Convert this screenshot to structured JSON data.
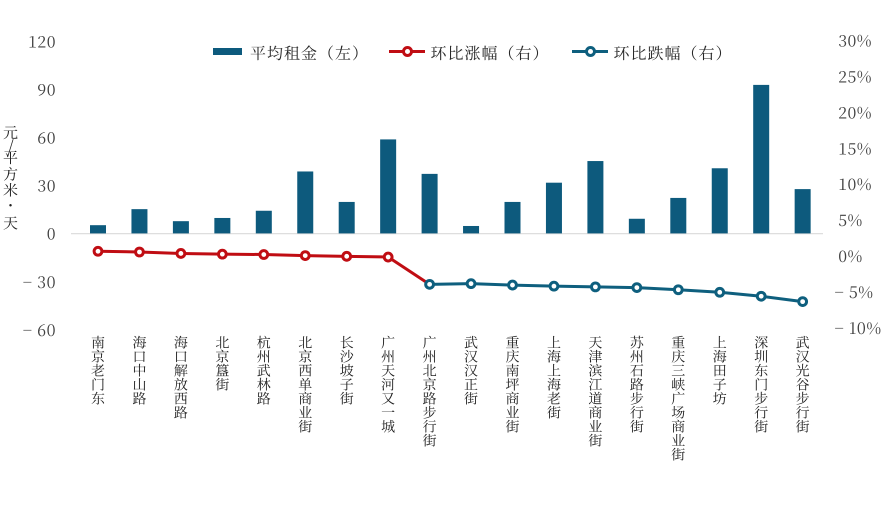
{
  "chart_data": {
    "type": "combo_bar_line",
    "categories": [
      "南京老门东",
      "海口中山路",
      "海口解放西路",
      "北京簋街",
      "杭州武林路",
      "北京西单商业街",
      "长沙坡子街",
      "广州天河又一城",
      "广州北京路步行街",
      "武汉汉正街",
      "重庆南坪商业街",
      "上海上海老街",
      "天津滨江道商业街",
      "苏州石路步行街",
      "重庆三峡广场商业街",
      "上海田子坊",
      "深圳东门步行街",
      "武汉光谷步行街"
    ],
    "series": [
      {
        "name": "平均租金（左）",
        "type": "bar",
        "axis": "left",
        "values": [
          5,
          15,
          7.5,
          9.5,
          14,
          38.5,
          19.5,
          58.5,
          37,
          4.5,
          19.5,
          31.5,
          45,
          9,
          22,
          40.5,
          92.5,
          27.5
        ]
      },
      {
        "name": "环比涨幅（右）",
        "type": "line",
        "axis": "right",
        "connect_next": true,
        "values": [
          0.6,
          0.5,
          0.3,
          0.2,
          0.15,
          0,
          -0.1,
          -0.2,
          null,
          null,
          null,
          null,
          null,
          null,
          null,
          null,
          null,
          null
        ]
      },
      {
        "name": "环比跌幅（右）",
        "type": "line",
        "axis": "right",
        "values": [
          null,
          null,
          null,
          null,
          null,
          null,
          null,
          null,
          -4,
          -3.9,
          -4.1,
          -4.25,
          -4.35,
          -4.45,
          -4.75,
          -5.1,
          -5.65,
          -6.4
        ]
      }
    ],
    "left_axis": {
      "title": "元/平方米·天",
      "tick_labels": [
        "120",
        "90",
        "60",
        "30",
        "0",
        "-30",
        "-60"
      ],
      "tick_values": [
        120,
        90,
        60,
        30,
        0,
        -30,
        -60
      ],
      "min": -60,
      "max": 120
    },
    "right_axis": {
      "tick_labels": [
        "30%",
        "25%",
        "20%",
        "15%",
        "10%",
        "5%",
        "0%",
        "-5%",
        "-10%"
      ],
      "tick_values": [
        30,
        25,
        20,
        15,
        10,
        5,
        0,
        -5,
        -10
      ],
      "min": -10,
      "max": 30
    },
    "grid": "off",
    "legend_position": "top"
  },
  "colors": {
    "bar": "#0d5a7d",
    "line_up": "#c00d13",
    "line_down": "#0e5f7e",
    "axis_line": "#d9d9d9",
    "tick_text": "#404040",
    "category_text": "#1f1f1f",
    "legend_text": "#262626",
    "background": "#ffffff"
  }
}
